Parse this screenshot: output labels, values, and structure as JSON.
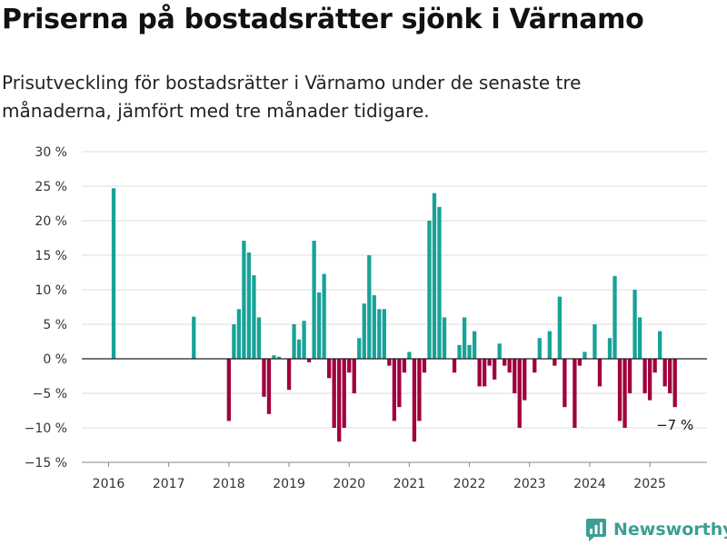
{
  "title": "Priserna på bostadsrätter sjönk i Värnamo",
  "subtitle": "Prisutveckling för bostadsrätter i Värnamo under de senaste tre månaderna, jämfört med tre månader tidigare.",
  "brand": "Newsworthy",
  "colors": {
    "positive": "#17a398",
    "negative": "#a0003d",
    "brand": "#3a9f94"
  },
  "chart_data": {
    "type": "bar",
    "y_unit": "%",
    "ylim": [
      -15,
      30
    ],
    "y_ticks": [
      {
        "value": 30,
        "label": "30 %"
      },
      {
        "value": 25,
        "label": "25 %"
      },
      {
        "value": 20,
        "label": "20 %"
      },
      {
        "value": 15,
        "label": "15 %"
      },
      {
        "value": 10,
        "label": "10 %"
      },
      {
        "value": 5,
        "label": "5 %"
      },
      {
        "value": 0,
        "label": "0 %"
      },
      {
        "value": -5,
        "label": "−5 %"
      },
      {
        "value": -10,
        "label": "−10 %"
      },
      {
        "value": -15,
        "label": "−15 %"
      }
    ],
    "x_ticks": [
      "2016",
      "2017",
      "2018",
      "2019",
      "2020",
      "2021",
      "2022",
      "2023",
      "2024",
      "2025"
    ],
    "start": "2016-01",
    "annotation": {
      "label": "−7 %",
      "month": "2025-06"
    },
    "grid": true,
    "months": [
      "2016-01",
      "2016-02",
      "2016-03",
      "2016-04",
      "2016-05",
      "2016-06",
      "2016-07",
      "2016-08",
      "2016-09",
      "2016-10",
      "2016-11",
      "2016-12",
      "2017-01",
      "2017-02",
      "2017-03",
      "2017-04",
      "2017-05",
      "2017-06",
      "2017-07",
      "2017-08",
      "2017-09",
      "2017-10",
      "2017-11",
      "2017-12",
      "2018-01",
      "2018-02",
      "2018-03",
      "2018-04",
      "2018-05",
      "2018-06",
      "2018-07",
      "2018-08",
      "2018-09",
      "2018-10",
      "2018-11",
      "2018-12",
      "2019-01",
      "2019-02",
      "2019-03",
      "2019-04",
      "2019-05",
      "2019-06",
      "2019-07",
      "2019-08",
      "2019-09",
      "2019-10",
      "2019-11",
      "2019-12",
      "2020-01",
      "2020-02",
      "2020-03",
      "2020-04",
      "2020-05",
      "2020-06",
      "2020-07",
      "2020-08",
      "2020-09",
      "2020-10",
      "2020-11",
      "2020-12",
      "2021-01",
      "2021-02",
      "2021-03",
      "2021-04",
      "2021-05",
      "2021-06",
      "2021-07",
      "2021-08",
      "2021-09",
      "2021-10",
      "2021-11",
      "2021-12",
      "2022-01",
      "2022-02",
      "2022-03",
      "2022-04",
      "2022-05",
      "2022-06",
      "2022-07",
      "2022-08",
      "2022-09",
      "2022-10",
      "2022-11",
      "2022-12",
      "2023-01",
      "2023-02",
      "2023-03",
      "2023-04",
      "2023-05",
      "2023-06",
      "2023-07",
      "2023-08",
      "2023-09",
      "2023-10",
      "2023-11",
      "2023-12",
      "2024-01",
      "2024-02",
      "2024-03",
      "2024-04",
      "2024-05",
      "2024-06",
      "2024-07",
      "2024-08",
      "2024-09",
      "2024-10",
      "2024-11",
      "2024-12",
      "2025-01",
      "2025-02",
      "2025-03",
      "2025-04",
      "2025-05",
      "2025-06"
    ],
    "values": [
      null,
      24.7,
      null,
      null,
      null,
      null,
      null,
      null,
      null,
      null,
      null,
      null,
      null,
      null,
      null,
      null,
      null,
      6.1,
      null,
      null,
      null,
      null,
      null,
      null,
      -9.0,
      5.0,
      7.2,
      17.1,
      15.4,
      12.1,
      6.0,
      -5.5,
      -8.0,
      0.5,
      0.3,
      null,
      -4.5,
      5.0,
      2.8,
      5.5,
      -0.5,
      17.1,
      9.6,
      12.3,
      -2.8,
      -10.0,
      -12.0,
      -10.0,
      -2.0,
      -5.0,
      3.0,
      8.0,
      15.0,
      9.2,
      7.2,
      7.2,
      -1.0,
      -9.0,
      -7.0,
      -2.0,
      1.0,
      -12.0,
      -9.0,
      -2.0,
      20.0,
      24.0,
      22.0,
      6.0,
      null,
      -2.0,
      2.0,
      6.0,
      2.0,
      4.0,
      -4.0,
      -4.0,
      -1.0,
      -3.0,
      2.2,
      -1.0,
      -2.0,
      -5.0,
      -10.0,
      -6.0,
      null,
      -2.0,
      3.0,
      null,
      4.0,
      -1.0,
      9.0,
      -7.0,
      null,
      -10.0,
      -1.0,
      1.0,
      null,
      5.0,
      -4.0,
      null,
      3.0,
      12.0,
      -9.0,
      -10.0,
      -5.0,
      10.0,
      6.0,
      -5.0,
      -6.0,
      -2.0,
      4.0,
      -4.0,
      -5.0,
      -7.0
    ]
  }
}
